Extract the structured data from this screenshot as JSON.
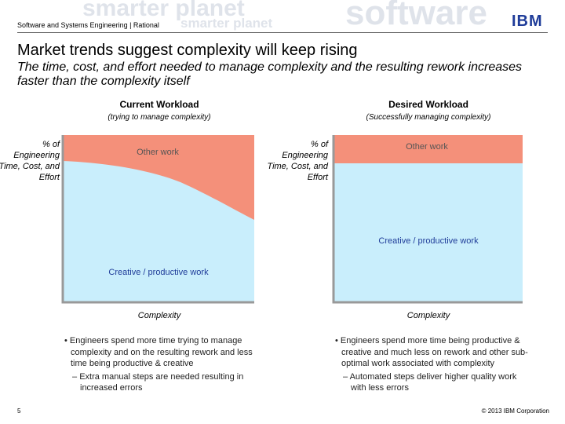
{
  "header": {
    "banner": [
      "smarter planet",
      "smarter planet",
      "software"
    ],
    "section": "Software and Systems Engineering | Rational",
    "logo": "IBM"
  },
  "title": "Market trends suggest complexity will keep rising",
  "subtitle": "The time, cost, and effort needed to manage complexity and the resulting rework increases faster than the complexity itself",
  "panels": [
    {
      "heading": "Current Workload",
      "subheading": "(trying to manage complexity)",
      "y_label": "% of Engineering Time, Cost, and Effort",
      "top_area": "Other work",
      "bottom_area": "Creative / productive work",
      "x_label": "Complexity",
      "bullets": [
        {
          "text": "Engineers spend more time trying to manage complexity and on the resulting rework and less time being productive & creative",
          "sub": "Extra manual steps are needed resulting in increased errors"
        }
      ]
    },
    {
      "heading": "Desired Workload",
      "subheading": "(Successfully managing complexity)",
      "y_label": "% of Engineering Time, Cost, and Effort",
      "top_area": "Other work",
      "bottom_area": "Creative / productive work",
      "x_label": "Complexity",
      "bullets": [
        {
          "text": "Engineers spend more time being productive & creative and much less on rework and other sub-optimal work associated with complexity",
          "sub": "Automated steps deliver higher quality work with less errors"
        }
      ]
    }
  ],
  "footer": {
    "page": "5",
    "copyright": "© 2013 IBM Corporation"
  }
}
